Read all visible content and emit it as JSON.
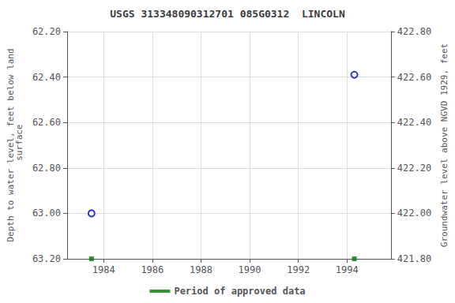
{
  "chart_data": {
    "type": "scatter",
    "title": "USGS 313348090312701 085G0312  LINCOLN",
    "ylabel": "Depth to water level, feet below land\n surface",
    "y2label": "Groundwater level above NGVD 1929, feet",
    "xlim": [
      1982.5,
      1995.8
    ],
    "xticks": [
      1984,
      1986,
      1988,
      1990,
      1992,
      1994
    ],
    "ylim": [
      63.2,
      62.2
    ],
    "yticks": [
      {
        "value": 62.2,
        "label": "62.20"
      },
      {
        "value": 62.4,
        "label": "62.40"
      },
      {
        "value": 62.6,
        "label": "62.60"
      },
      {
        "value": 62.8,
        "label": "62.80"
      },
      {
        "value": 63.0,
        "label": "63.00"
      },
      {
        "value": 63.2,
        "label": "63.20"
      }
    ],
    "y2lim": [
      421.8,
      422.8
    ],
    "y2ticks": [
      {
        "value": 422.8,
        "label": "422.80"
      },
      {
        "value": 422.6,
        "label": "422.60"
      },
      {
        "value": 422.4,
        "label": "422.40"
      },
      {
        "value": 422.2,
        "label": "422.20"
      },
      {
        "value": 422.0,
        "label": "422.00"
      },
      {
        "value": 421.8,
        "label": "421.80"
      }
    ],
    "series": [
      {
        "x": [
          1983.5,
          1994.3
        ],
        "values": [
          63.0,
          62.39
        ],
        "color": "#0000bb",
        "marker": "circle"
      },
      {
        "name": "Period of approved data",
        "x": [
          1983.5,
          1994.3
        ],
        "values": [
          63.2,
          63.2
        ],
        "color": "#007700",
        "marker": "square"
      }
    ],
    "grid": true,
    "legend": "bottom"
  }
}
